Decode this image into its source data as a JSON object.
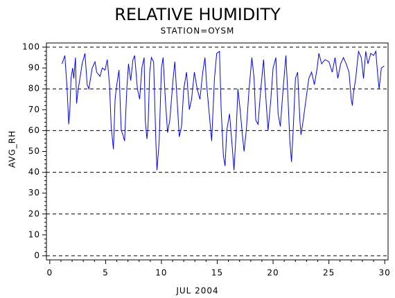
{
  "chart_data": {
    "type": "line",
    "title": "RELATIVE HUMIDITY",
    "subtitle": "STATION=OYSM",
    "x_label": "JUL 2004",
    "y_label": "AVG_RH",
    "grid": true,
    "xlim": [
      -0.3,
      30.3
    ],
    "xticks": [
      0,
      5,
      10,
      15,
      20,
      25,
      30
    ],
    "ylim": [
      -2,
      102
    ],
    "yticks": [
      0,
      10,
      20,
      30,
      40,
      50,
      60,
      70,
      80,
      90,
      100
    ],
    "series": [
      {
        "name": "AVG_RH",
        "color": "#0000ff",
        "x": [
          1.1,
          1.35,
          1.55,
          1.7,
          1.8,
          1.9,
          2.05,
          2.15,
          2.3,
          2.4,
          2.55,
          2.7,
          2.9,
          3.15,
          3.35,
          3.5,
          3.8,
          4.05,
          4.2,
          4.5,
          4.7,
          4.95,
          5.15,
          5.35,
          5.5,
          5.7,
          5.85,
          6.0,
          6.2,
          6.4,
          6.55,
          6.7,
          6.9,
          7.05,
          7.25,
          7.45,
          7.6,
          7.85,
          8.05,
          8.25,
          8.45,
          8.55,
          8.7,
          8.8,
          8.95,
          9.1,
          9.3,
          9.5,
          9.6,
          9.8,
          10.0,
          10.15,
          10.35,
          10.55,
          10.75,
          11.05,
          11.2,
          11.4,
          11.6,
          11.8,
          12.0,
          12.25,
          12.5,
          12.7,
          12.95,
          13.2,
          13.45,
          13.7,
          13.9,
          14.05,
          14.25,
          14.5,
          14.75,
          14.95,
          15.2,
          15.35,
          15.55,
          15.7,
          15.85,
          16.1,
          16.3,
          16.5,
          16.7,
          16.85,
          17.05,
          17.25,
          17.4,
          17.6,
          17.85,
          18.1,
          18.3,
          18.45,
          18.65,
          18.9,
          19.15,
          19.35,
          19.55,
          19.8,
          20.0,
          20.25,
          20.45,
          20.65,
          20.9,
          21.15,
          21.3,
          21.5,
          21.65,
          21.8,
          22.0,
          22.2,
          22.4,
          22.5,
          22.7,
          22.95,
          23.2,
          23.45,
          23.7,
          23.95,
          24.1,
          24.35,
          24.65,
          25.0,
          25.3,
          25.55,
          25.8,
          26.05,
          26.3,
          26.55,
          26.8,
          27.0,
          27.1,
          27.2,
          27.4,
          27.65,
          27.9,
          28.1,
          28.3,
          28.5,
          28.75,
          29.0,
          29.2,
          29.4,
          29.5,
          29.7,
          29.95
        ],
        "values": [
          92,
          96,
          80,
          63,
          70,
          85,
          90,
          85,
          95,
          73,
          80,
          85,
          92,
          97,
          82,
          80,
          90,
          93,
          88,
          86,
          90,
          89,
          94,
          82,
          62,
          51,
          75,
          82,
          89,
          60,
          58,
          55,
          80,
          92,
          84,
          94,
          96,
          80,
          75,
          90,
          95,
          65,
          56,
          62,
          88,
          95,
          93,
          55,
          41,
          55,
          90,
          95,
          75,
          59,
          65,
          85,
          93,
          75,
          57,
          62,
          80,
          88,
          70,
          75,
          88,
          80,
          75,
          88,
          95,
          82,
          70,
          55,
          85,
          97,
          98,
          70,
          48,
          43,
          60,
          68,
          55,
          41,
          60,
          80,
          70,
          58,
          50,
          60,
          80,
          95,
          85,
          65,
          63,
          80,
          94,
          76,
          60,
          75,
          90,
          95,
          68,
          62,
          80,
          96,
          80,
          55,
          45,
          60,
          85,
          88,
          65,
          58,
          65,
          75,
          85,
          88,
          82,
          90,
          97,
          92,
          94,
          93,
          88,
          95,
          85,
          92,
          95,
          92,
          88,
          75,
          72,
          78,
          85,
          98,
          95,
          85,
          98,
          92,
          97,
          96,
          98,
          85,
          80,
          90,
          91
        ]
      }
    ]
  }
}
